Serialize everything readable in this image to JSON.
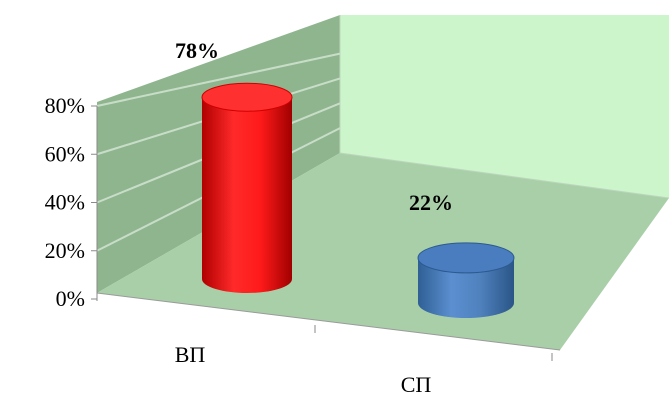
{
  "chart_data": {
    "type": "bar",
    "style": "3d-cylinder",
    "categories": [
      "ВП",
      "СП"
    ],
    "values": [
      78,
      22
    ],
    "value_labels": [
      "78%",
      "22%"
    ],
    "series_colors": [
      "#ff0000",
      "#4f81bd"
    ],
    "ylim": [
      0,
      80
    ],
    "yticks": [
      "0%",
      "20%",
      "40%",
      "60%",
      "80%"
    ],
    "ytick_values": [
      0,
      20,
      40,
      60,
      80
    ],
    "grid": true,
    "legend": "none",
    "wall_color": "#9bbb9b",
    "floor_color": "#a9cfa8",
    "back_wall_color": "#ccf5cc"
  }
}
